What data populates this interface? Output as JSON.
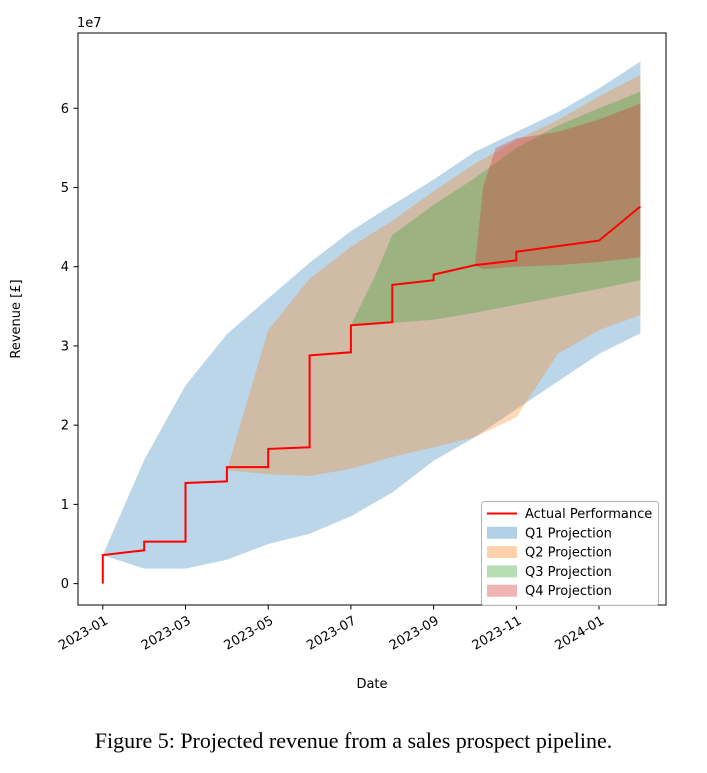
{
  "figure": {
    "caption": "Figure 5: Projected revenue from a sales prospect pipeline."
  },
  "chart_data": {
    "type": "area",
    "title": "",
    "xlabel": "Date",
    "ylabel": "Revenue [£]",
    "y_offset_label": "1e7",
    "y_unit_scale": 10000000,
    "x_unit": "months since 2023-01-01",
    "grid": false,
    "legend_position": "lower right",
    "x_range": [
      -0.6,
      13.62
    ],
    "y_range": [
      -0.27,
      6.95
    ],
    "x_ticks": {
      "months": [
        0,
        2,
        4,
        6,
        8,
        10,
        12
      ],
      "labels": [
        "2023-01",
        "2023-03",
        "2023-05",
        "2023-07",
        "2023-09",
        "2023-11",
        "2024-01"
      ]
    },
    "y_ticks": [
      0,
      1,
      2,
      3,
      4,
      5,
      6
    ],
    "actual": {
      "name": "Actual Performance",
      "type": "step-line",
      "color": "#ff0000",
      "points_m_v": [
        [
          0,
          0
        ],
        [
          0,
          0.36
        ],
        [
          1,
          0.42
        ],
        [
          1,
          0.53
        ],
        [
          2,
          0.53
        ],
        [
          2,
          1.27
        ],
        [
          3,
          1.29
        ],
        [
          3,
          1.47
        ],
        [
          4,
          1.47
        ],
        [
          4,
          1.7
        ],
        [
          5,
          1.72
        ],
        [
          5,
          2.88
        ],
        [
          6,
          2.92
        ],
        [
          6,
          3.26
        ],
        [
          7,
          3.3
        ],
        [
          7,
          3.77
        ],
        [
          8,
          3.83
        ],
        [
          8,
          3.9
        ],
        [
          9,
          4.02
        ],
        [
          10,
          4.08
        ],
        [
          10,
          4.19
        ],
        [
          11,
          4.26
        ],
        [
          12,
          4.33
        ],
        [
          13,
          4.76
        ]
      ]
    },
    "bands": [
      {
        "name": "Q1 Projection",
        "color": "#1f77b4",
        "alpha": 0.3,
        "start_date": "2023-01",
        "m": [
          0,
          1,
          2,
          3,
          4,
          5,
          6,
          7,
          8,
          9,
          10,
          11,
          12,
          13
        ],
        "upper": [
          0.36,
          1.56,
          2.5,
          3.15,
          3.6,
          4.05,
          4.45,
          4.78,
          5.1,
          5.45,
          5.7,
          5.95,
          6.25,
          6.59
        ],
        "lower": [
          0.36,
          0.19,
          0.19,
          0.3,
          0.5,
          0.63,
          0.85,
          1.15,
          1.55,
          1.85,
          2.2,
          2.55,
          2.9,
          3.16
        ]
      },
      {
        "name": "Q2 Projection",
        "color": "#ff7f0e",
        "alpha": 0.3,
        "start_date": "2023-04",
        "m": [
          3,
          4,
          5,
          6,
          7,
          8,
          9,
          10,
          11,
          12,
          13
        ],
        "upper": [
          1.43,
          3.2,
          3.85,
          4.25,
          4.58,
          4.95,
          5.3,
          5.6,
          5.85,
          6.15,
          6.42
        ],
        "lower": [
          1.43,
          1.38,
          1.36,
          1.45,
          1.6,
          1.72,
          1.85,
          2.1,
          2.9,
          3.2,
          3.39
        ]
      },
      {
        "name": "Q3 Projection",
        "color": "#2ca02c",
        "alpha": 0.3,
        "start_date": "2023-07",
        "m": [
          6,
          6.6,
          7,
          8,
          9,
          10,
          11,
          12,
          13
        ],
        "upper": [
          3.26,
          3.9,
          4.4,
          4.78,
          5.12,
          5.5,
          5.78,
          6.0,
          6.21
        ],
        "lower": [
          3.26,
          3.27,
          3.29,
          3.33,
          3.42,
          3.52,
          3.62,
          3.72,
          3.83
        ]
      },
      {
        "name": "Q4 Projection",
        "color": "#d62728",
        "alpha": 0.3,
        "start_date": "2023-10",
        "m": [
          9,
          9.2,
          9.5,
          10,
          11,
          12,
          13
        ],
        "upper": [
          4.02,
          5.0,
          5.5,
          5.62,
          5.7,
          5.86,
          6.06
        ],
        "lower": [
          4.02,
          3.97,
          3.98,
          4.0,
          4.02,
          4.06,
          4.12
        ]
      }
    ]
  },
  "legend": {
    "items": [
      {
        "label": "Actual Performance",
        "swatch": "line",
        "color": "#ff0000"
      },
      {
        "label": "Q1 Projection",
        "swatch": "patch",
        "color": "#1f77b4"
      },
      {
        "label": "Q2 Projection",
        "swatch": "patch",
        "color": "#ff7f0e"
      },
      {
        "label": "Q3 Projection",
        "swatch": "patch",
        "color": "#2ca02c"
      },
      {
        "label": "Q4 Projection",
        "swatch": "patch",
        "color": "#d62728"
      }
    ]
  }
}
